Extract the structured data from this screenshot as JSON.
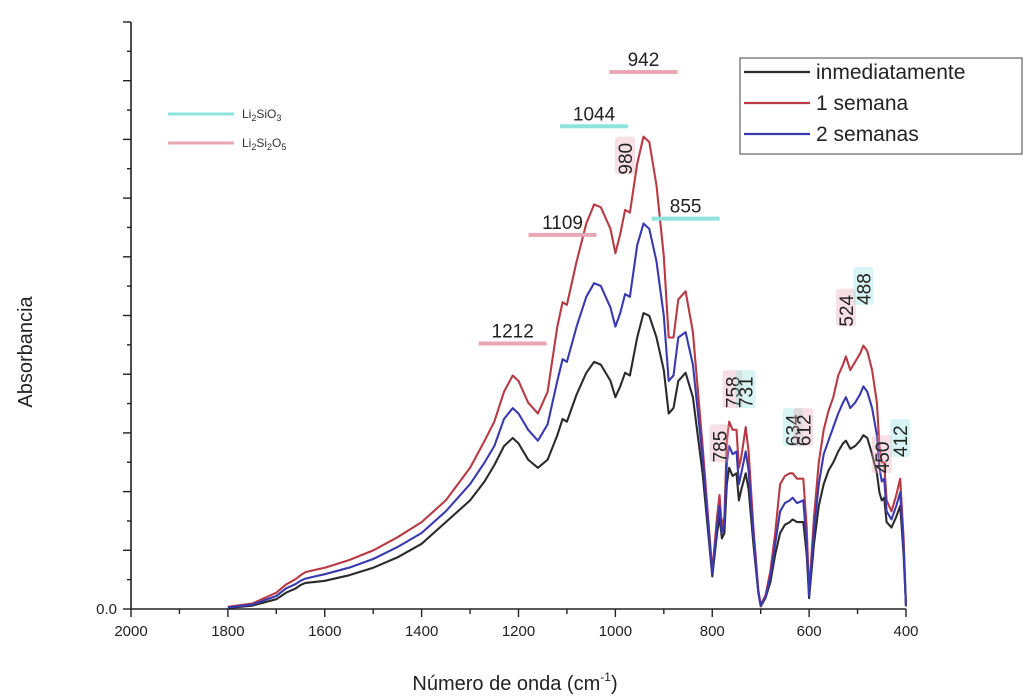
{
  "chart_data": {
    "type": "line",
    "title": "",
    "xlabel_prefix": "Número de onda (cm",
    "xlabel_sup": "-1",
    "xlabel_suffix": ")",
    "ylabel": "Absorbancia",
    "xlim": [
      2000,
      400
    ],
    "ylim": [
      0,
      1.0
    ],
    "x_ticks": [
      "2000",
      "1800",
      "1600",
      "1400",
      "1200",
      "1000",
      "800",
      "600",
      "400"
    ],
    "y_tick_label": "0.0",
    "x": [
      1800,
      1750,
      1700,
      1680,
      1660,
      1650,
      1640,
      1620,
      1600,
      1550,
      1500,
      1450,
      1400,
      1350,
      1300,
      1270,
      1250,
      1230,
      1212,
      1200,
      1180,
      1160,
      1140,
      1120,
      1109,
      1100,
      1080,
      1060,
      1044,
      1030,
      1010,
      1000,
      990,
      980,
      970,
      955,
      942,
      930,
      915,
      900,
      890,
      880,
      870,
      855,
      840,
      820,
      800,
      790,
      785,
      780,
      775,
      770,
      765,
      758,
      750,
      745,
      740,
      731,
      725,
      715,
      705,
      700,
      690,
      680,
      670,
      660,
      650,
      640,
      634,
      625,
      612,
      605,
      600,
      590,
      580,
      570,
      560,
      550,
      540,
      530,
      524,
      515,
      505,
      495,
      488,
      480,
      470,
      460,
      455,
      450,
      445,
      440,
      430,
      420,
      412,
      405,
      400
    ],
    "series": [
      {
        "name": "inmediatamente",
        "color": "#2b2b2b",
        "values": [
          0.002,
          0.006,
          0.018,
          0.03,
          0.038,
          0.044,
          0.048,
          0.05,
          0.052,
          0.062,
          0.076,
          0.095,
          0.12,
          0.16,
          0.2,
          0.235,
          0.265,
          0.3,
          0.315,
          0.305,
          0.275,
          0.26,
          0.275,
          0.32,
          0.35,
          0.345,
          0.395,
          0.435,
          0.455,
          0.45,
          0.42,
          0.39,
          0.41,
          0.435,
          0.43,
          0.5,
          0.545,
          0.54,
          0.5,
          0.44,
          0.36,
          0.37,
          0.42,
          0.435,
          0.39,
          0.25,
          0.06,
          0.14,
          0.17,
          0.13,
          0.14,
          0.23,
          0.26,
          0.245,
          0.25,
          0.2,
          0.22,
          0.25,
          0.22,
          0.12,
          0.03,
          0.005,
          0.02,
          0.05,
          0.1,
          0.14,
          0.155,
          0.16,
          0.165,
          0.16,
          0.16,
          0.1,
          0.02,
          0.12,
          0.19,
          0.23,
          0.255,
          0.27,
          0.29,
          0.305,
          0.31,
          0.295,
          0.3,
          0.31,
          0.32,
          0.315,
          0.285,
          0.25,
          0.215,
          0.2,
          0.205,
          0.16,
          0.15,
          0.17,
          0.19,
          0.1,
          0.005
        ]
      },
      {
        "name": "1 semana",
        "color": "#b83a44",
        "values": [
          0.004,
          0.01,
          0.03,
          0.045,
          0.055,
          0.062,
          0.068,
          0.072,
          0.076,
          0.09,
          0.108,
          0.132,
          0.16,
          0.2,
          0.26,
          0.31,
          0.345,
          0.4,
          0.43,
          0.42,
          0.38,
          0.36,
          0.4,
          0.52,
          0.565,
          0.56,
          0.64,
          0.71,
          0.745,
          0.74,
          0.7,
          0.655,
          0.69,
          0.735,
          0.73,
          0.82,
          0.87,
          0.86,
          0.78,
          0.65,
          0.5,
          0.5,
          0.57,
          0.585,
          0.51,
          0.3,
          0.07,
          0.17,
          0.21,
          0.15,
          0.17,
          0.31,
          0.345,
          0.33,
          0.33,
          0.26,
          0.28,
          0.335,
          0.29,
          0.15,
          0.035,
          0.008,
          0.025,
          0.07,
          0.14,
          0.23,
          0.245,
          0.25,
          0.25,
          0.24,
          0.24,
          0.15,
          0.03,
          0.17,
          0.27,
          0.33,
          0.365,
          0.39,
          0.43,
          0.45,
          0.465,
          0.44,
          0.455,
          0.47,
          0.485,
          0.475,
          0.44,
          0.38,
          0.3,
          0.27,
          0.27,
          0.2,
          0.18,
          0.21,
          0.24,
          0.13,
          0.005
        ]
      },
      {
        "name": "2 semanas",
        "color": "#3a3ab0",
        "values": [
          0.003,
          0.008,
          0.024,
          0.038,
          0.046,
          0.052,
          0.056,
          0.06,
          0.064,
          0.076,
          0.092,
          0.114,
          0.14,
          0.18,
          0.23,
          0.27,
          0.3,
          0.35,
          0.37,
          0.36,
          0.33,
          0.31,
          0.34,
          0.42,
          0.46,
          0.455,
          0.52,
          0.575,
          0.6,
          0.595,
          0.555,
          0.52,
          0.545,
          0.58,
          0.575,
          0.67,
          0.71,
          0.7,
          0.64,
          0.54,
          0.42,
          0.43,
          0.5,
          0.51,
          0.45,
          0.28,
          0.065,
          0.155,
          0.19,
          0.14,
          0.155,
          0.27,
          0.3,
          0.285,
          0.29,
          0.23,
          0.25,
          0.29,
          0.255,
          0.135,
          0.032,
          0.006,
          0.022,
          0.06,
          0.12,
          0.18,
          0.195,
          0.2,
          0.205,
          0.195,
          0.2,
          0.12,
          0.025,
          0.145,
          0.23,
          0.285,
          0.31,
          0.335,
          0.36,
          0.38,
          0.39,
          0.37,
          0.38,
          0.395,
          0.41,
          0.4,
          0.37,
          0.32,
          0.26,
          0.235,
          0.24,
          0.18,
          0.165,
          0.19,
          0.215,
          0.115,
          0.005
        ]
      }
    ],
    "peak_labels": [
      {
        "text": "1212",
        "x": 1212,
        "y": 0.5,
        "rotate": false,
        "underline": "#e9a6b4"
      },
      {
        "text": "1109",
        "x": 1109,
        "y": 0.7,
        "rotate": false,
        "underline": "#e9a6b4"
      },
      {
        "text": "1044",
        "x": 1044,
        "y": 0.9,
        "rotate": false,
        "underline": "#8fe3df"
      },
      {
        "text": "980",
        "x": 980,
        "y": 0.8,
        "rotate": true,
        "underline": "#e9a6b4"
      },
      {
        "text": "942",
        "x": 942,
        "y": 1.0,
        "rotate": false,
        "underline": "#e9a6b4"
      },
      {
        "text": "855",
        "x": 855,
        "y": 0.73,
        "rotate": false,
        "underline": "#8fe3df"
      },
      {
        "text": "785",
        "x": 785,
        "y": 0.27,
        "rotate": true,
        "underline": "#e9a6b4"
      },
      {
        "text": "758",
        "x": 758,
        "y": 0.37,
        "rotate": true,
        "underline": "#e9a6b4"
      },
      {
        "text": "731",
        "x": 731,
        "y": 0.37,
        "rotate": true,
        "underline": "#8fe3df"
      },
      {
        "text": "634",
        "x": 634,
        "y": 0.3,
        "rotate": true,
        "underline": "#8fe3df"
      },
      {
        "text": "612",
        "x": 612,
        "y": 0.3,
        "rotate": true,
        "underline": "#e9a6b4"
      },
      {
        "text": "524",
        "x": 524,
        "y": 0.52,
        "rotate": true,
        "underline": "#e9a6b4"
      },
      {
        "text": "488",
        "x": 488,
        "y": 0.56,
        "rotate": true,
        "underline": "#8fe3df"
      },
      {
        "text": "450",
        "x": 450,
        "y": 0.25,
        "rotate": true,
        "underline": "#e9a6b4"
      },
      {
        "text": "412",
        "x": 412,
        "y": 0.28,
        "rotate": true,
        "underline": "#8fe3df"
      }
    ],
    "legend": {
      "position": "top-right",
      "entries": [
        "inmediatamente",
        "1 semana",
        "2 semanas"
      ]
    },
    "phase_legend": {
      "position": "top-left",
      "entries": [
        {
          "base": "Li",
          "sub1": "2",
          "mid": "SiO",
          "sub2": "3",
          "end": "",
          "color": "#8fe3df"
        },
        {
          "base": "Li",
          "sub1": "2",
          "mid": "Si",
          "sub2": "2",
          "end": "O",
          "sub3": "5",
          "color": "#e9a6b4"
        }
      ]
    }
  }
}
